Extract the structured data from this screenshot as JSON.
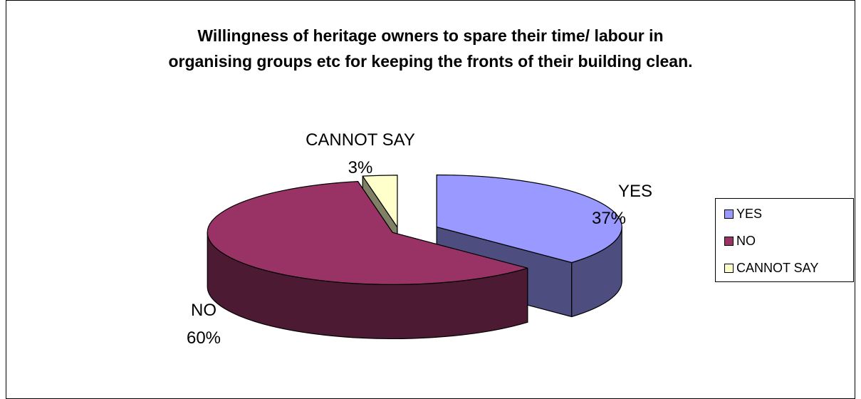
{
  "chart_data": {
    "type": "pie",
    "title_lines": [
      "Willingness of heritage owners to spare their time/ labour in",
      "organising groups etc for keeping the fronts of their building clean."
    ],
    "categories": [
      "YES",
      "NO",
      "CANNOT SAY"
    ],
    "values": [
      37,
      60,
      3
    ],
    "value_labels": [
      "37%",
      "60%",
      "3%"
    ],
    "colors": {
      "YES": "#9999ff",
      "NO": "#993366",
      "CANNOT SAY": "#ffffcc"
    },
    "side_colors": {
      "YES": "#4d4d80",
      "NO": "#4d1a33",
      "CANNOT SAY": "#808066"
    },
    "style": "3d-exploded",
    "legend_position": "right"
  }
}
